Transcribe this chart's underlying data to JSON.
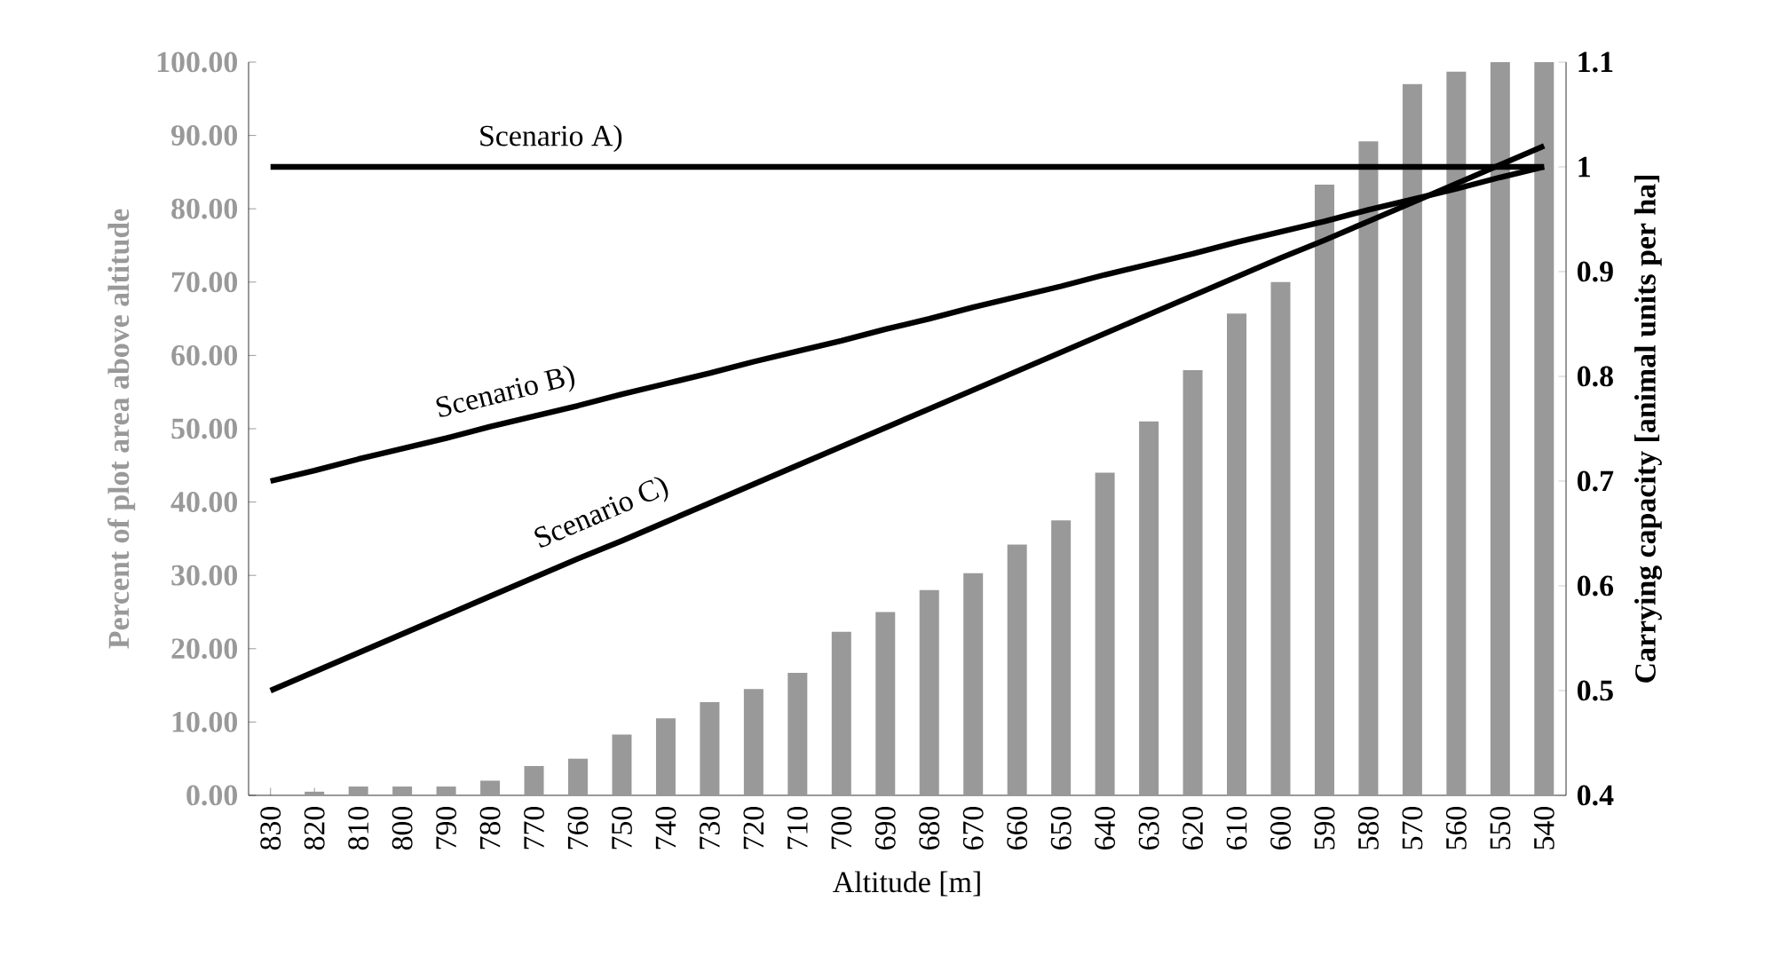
{
  "chart_data": {
    "type": "bar",
    "xlabel": "Altitude [m]",
    "ylabel": "Percent of plot area above altitude",
    "y2label": "Carrying capacity [animal units per ha]",
    "categories": [
      "830",
      "820",
      "810",
      "800",
      "790",
      "780",
      "770",
      "760",
      "750",
      "740",
      "730",
      "720",
      "710",
      "700",
      "690",
      "680",
      "670",
      "660",
      "650",
      "640",
      "630",
      "620",
      "610",
      "600",
      "590",
      "580",
      "570",
      "560",
      "550",
      "540"
    ],
    "values": [
      0,
      0.5,
      1.2,
      1.2,
      1.2,
      2,
      4,
      5,
      8.3,
      10.5,
      12.7,
      14.5,
      16.7,
      22.3,
      25,
      28,
      30.3,
      34.2,
      37.5,
      44,
      51,
      58,
      65.7,
      70,
      83.3,
      89.2,
      97,
      98.7,
      100,
      100
    ],
    "color": "#999999",
    "series": [
      {
        "type": "line",
        "axis": "y2",
        "color": "#000000",
        "values": [
          1,
          1,
          1,
          1,
          1,
          1,
          1,
          1,
          1,
          1,
          1,
          1,
          1,
          1,
          1,
          1,
          1,
          1,
          1,
          1,
          1,
          1,
          1,
          1,
          1,
          1,
          1,
          1,
          1,
          1
        ]
      },
      {
        "type": "line",
        "axis": "y2",
        "color": "#000000",
        "values": [
          0.7,
          0.71,
          0.721,
          0.731,
          0.741,
          0.752,
          0.762,
          0.772,
          0.783,
          0.793,
          0.803,
          0.814,
          0.824,
          0.834,
          0.845,
          0.855,
          0.866,
          0.876,
          0.886,
          0.897,
          0.907,
          0.917,
          0.928,
          0.938,
          0.948,
          0.959,
          0.969,
          0.979,
          0.99,
          1.0
        ]
      },
      {
        "type": "line",
        "axis": "y2",
        "color": "#000000",
        "values": [
          0.5,
          0.518,
          0.536,
          0.554,
          0.572,
          0.59,
          0.608,
          0.626,
          0.643,
          0.661,
          0.679,
          0.697,
          0.715,
          0.733,
          0.751,
          0.769,
          0.787,
          0.805,
          0.823,
          0.841,
          0.859,
          0.877,
          0.895,
          0.913,
          0.93,
          0.948,
          0.966,
          0.984,
          1.002,
          1.02
        ]
      }
    ],
    "annotations": [
      "Scenario A)",
      "Scenario B)",
      "Scenario C)"
    ],
    "ylim": [
      0,
      100
    ],
    "yticks": [
      {
        "value": 0,
        "label": "0.00"
      },
      {
        "value": 10,
        "label": "10.00"
      },
      {
        "value": 20,
        "label": "20.00"
      },
      {
        "value": 30,
        "label": "30.00"
      },
      {
        "value": 40,
        "label": "40.00"
      },
      {
        "value": 50,
        "label": "50.00"
      },
      {
        "value": 60,
        "label": "60.00"
      },
      {
        "value": 70,
        "label": "70.00"
      },
      {
        "value": 80,
        "label": "80.00"
      },
      {
        "value": 90,
        "label": "90.00"
      },
      {
        "value": 100,
        "label": "100.00"
      }
    ],
    "y2lim": [
      0.4,
      1.1
    ],
    "y2ticks": [
      0.4,
      0.5,
      0.6,
      0.7,
      0.8,
      0.9,
      1,
      1.1
    ],
    "grid": false
  }
}
